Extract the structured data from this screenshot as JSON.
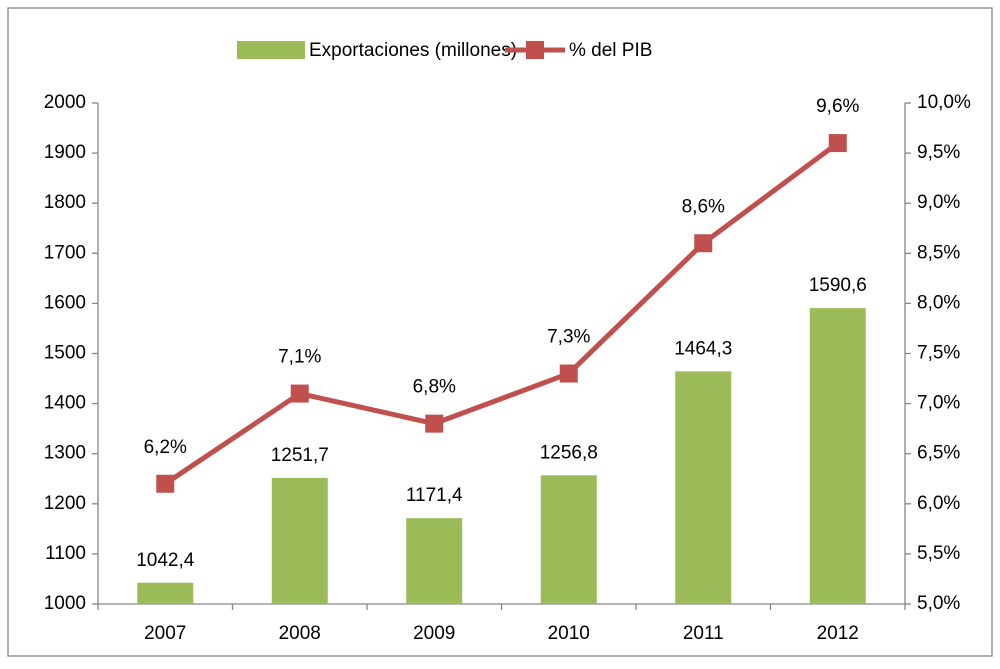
{
  "chart_data": {
    "type": "bar-line",
    "categories": [
      "2007",
      "2008",
      "2009",
      "2010",
      "2011",
      "2012"
    ],
    "series": [
      {
        "name": "Exportaciones (millones)",
        "type": "bar",
        "color": "#9bbb59",
        "axis": "y",
        "values": [
          1042.4,
          1251.7,
          1171.4,
          1256.8,
          1464.3,
          1590.6
        ],
        "value_labels": [
          "1042,4",
          "1251,7",
          "1171,4",
          "1256,8",
          "1464,3",
          "1590,6"
        ]
      },
      {
        "name": "% del PIB",
        "type": "line",
        "color": "#c0504d",
        "axis": "y2",
        "values": [
          6.2,
          7.1,
          6.8,
          7.3,
          8.6,
          9.6
        ],
        "value_labels": [
          "6,2%",
          "7,1%",
          "6,8%",
          "7,3%",
          "8,6%",
          "9,6%"
        ]
      }
    ],
    "ylim": [
      1000,
      2000
    ],
    "yticks": [
      1000,
      1100,
      1200,
      1300,
      1400,
      1500,
      1600,
      1700,
      1800,
      1900,
      2000
    ],
    "y2lim": [
      5.0,
      10.0
    ],
    "y2ticks": [
      {
        "value": 5.0,
        "label": "5,0%"
      },
      {
        "value": 5.5,
        "label": "5,5%"
      },
      {
        "value": 6.0,
        "label": "6,0%"
      },
      {
        "value": 6.5,
        "label": "6,5%"
      },
      {
        "value": 7.0,
        "label": "7,0%"
      },
      {
        "value": 7.5,
        "label": "7,5%"
      },
      {
        "value": 8.0,
        "label": "8,0%"
      },
      {
        "value": 8.5,
        "label": "8,5%"
      },
      {
        "value": 9.0,
        "label": "9,0%"
      },
      {
        "value": 9.5,
        "label": "9,5%"
      },
      {
        "value": 10.0,
        "label": "10,0%"
      }
    ],
    "legend": "top"
  }
}
